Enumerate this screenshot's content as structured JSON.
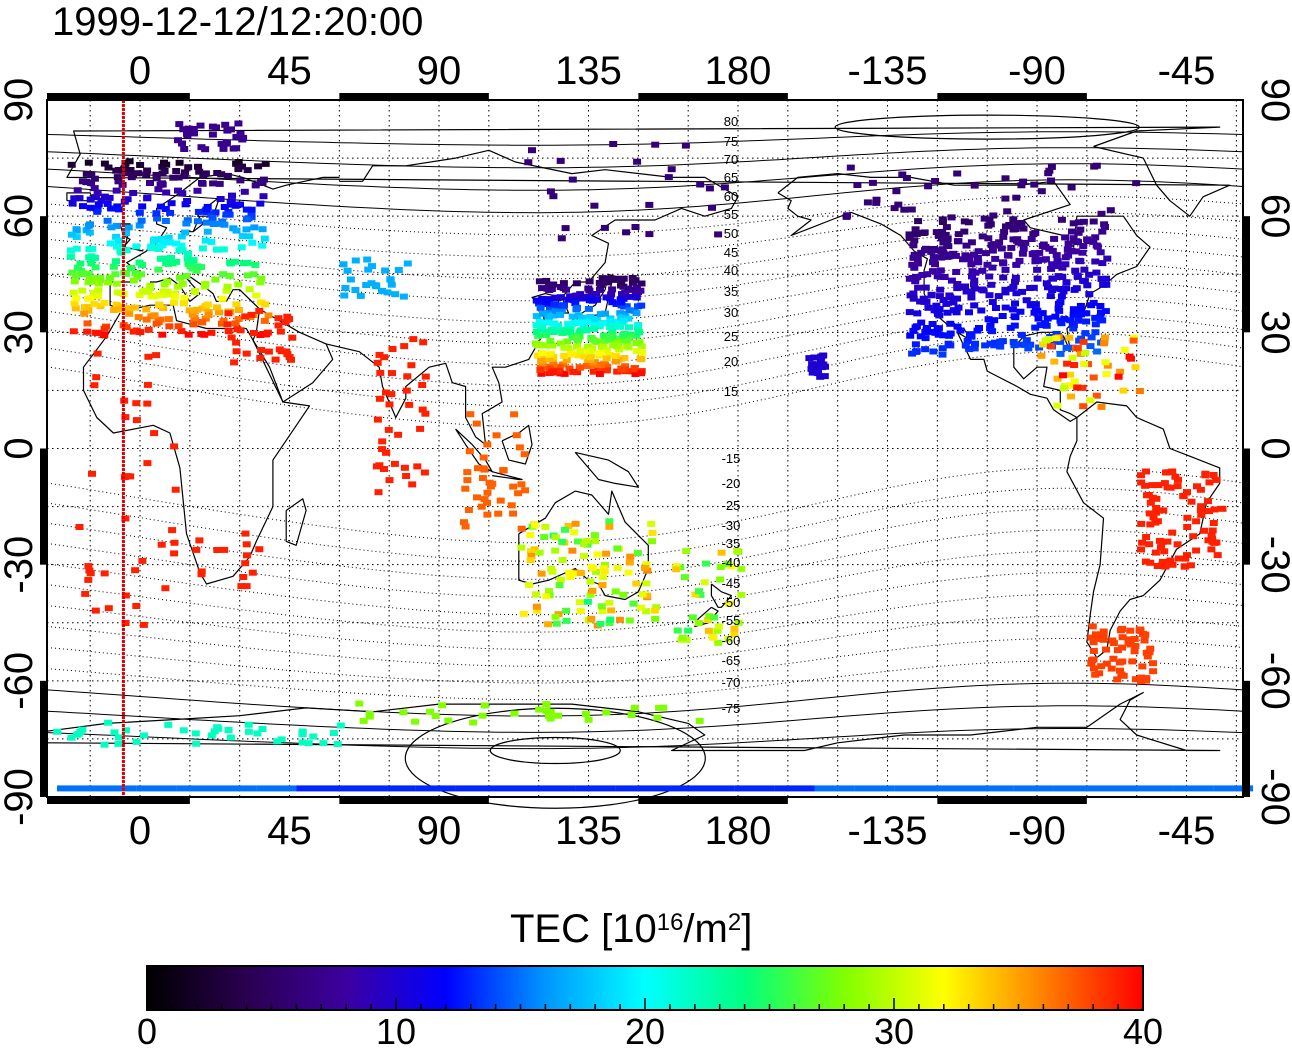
{
  "title": "1999-12-12/12:20:00",
  "map": {
    "top_lon_labels": [
      "0",
      "45",
      "90",
      "135",
      "180",
      "-135",
      "-90",
      "-45"
    ],
    "bottom_lon_labels": [
      "0",
      "45",
      "90",
      "135",
      "180",
      "-135",
      "-90",
      "-45"
    ],
    "left_lat_labels": [
      "90",
      "60",
      "30",
      "0",
      "-30",
      "-60",
      "-90"
    ],
    "right_lat_labels": [
      "90",
      "60",
      "30",
      "0",
      "-30",
      "-60",
      "-90"
    ],
    "contour_labels_north": [
      "80",
      "75",
      "70",
      "65",
      "60",
      "55",
      "50",
      "45",
      "40",
      "35",
      "30",
      "25",
      "20",
      "15"
    ],
    "contour_labels_south": [
      "-15",
      "-20",
      "-25",
      "-30",
      "-35",
      "-40",
      "-45",
      "-50",
      "-55",
      "-60",
      "-65",
      "-70",
      "-75"
    ],
    "marker_line_lon": -5,
    "marker_line_color": "#e00000"
  },
  "colorbar": {
    "title_main": "TEC  [10",
    "title_exp": "16",
    "title_unit": "/m",
    "title_unit_exp": "2",
    "title_close": "]",
    "labels": [
      "0",
      "10",
      "20",
      "30",
      "40"
    ],
    "range": [
      0,
      40
    ],
    "colors": [
      "#000000",
      "#2a0050",
      "#3c00a0",
      "#0000ff",
      "#0096ff",
      "#00ffff",
      "#00ff80",
      "#80ff00",
      "#ffff00",
      "#ff8000",
      "#ff0000"
    ]
  }
}
